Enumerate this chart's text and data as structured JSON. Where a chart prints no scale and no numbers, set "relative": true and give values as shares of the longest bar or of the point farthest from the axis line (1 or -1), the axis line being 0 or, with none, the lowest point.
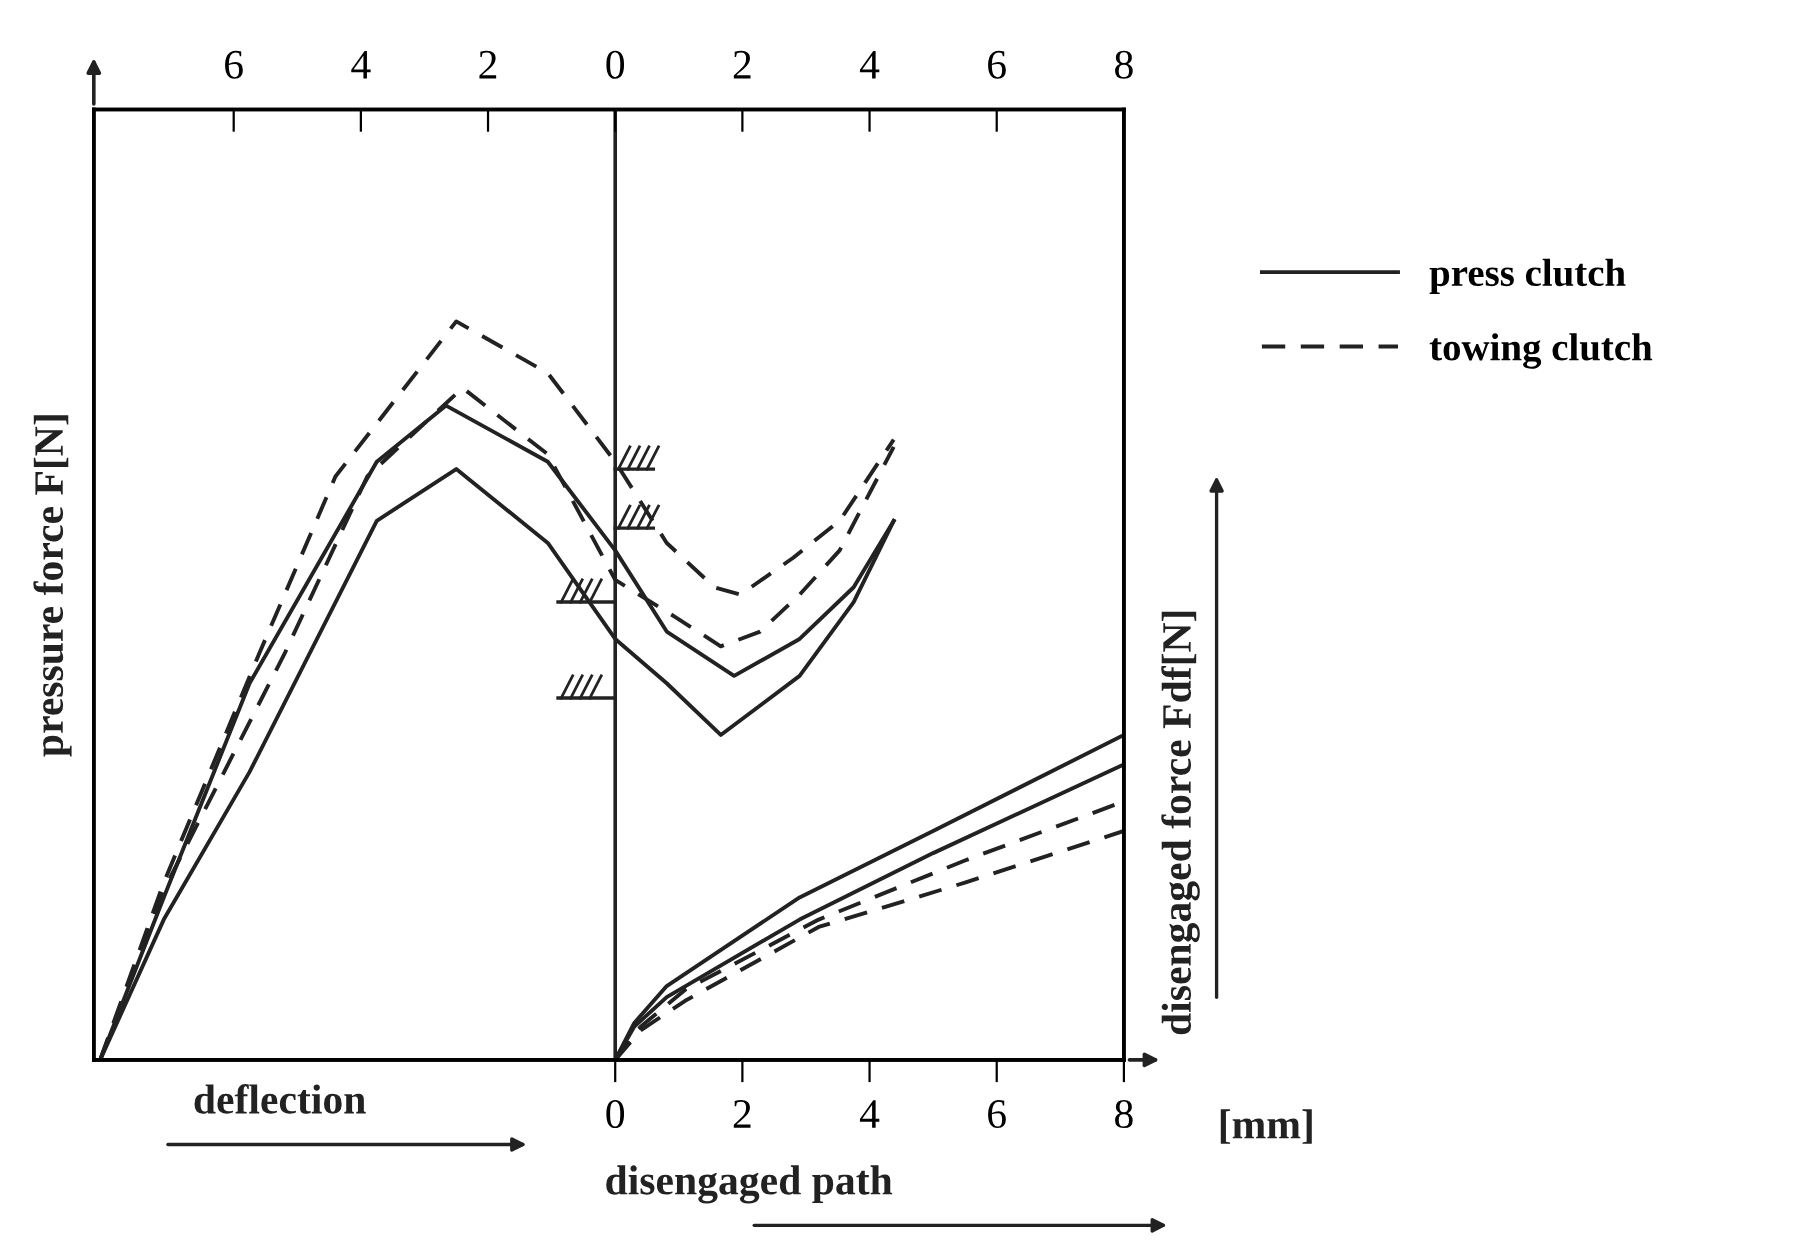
{
  "chart_data": {
    "type": "line",
    "relative": true,
    "ylabel": "pressure force F[N]",
    "y2label": "disengaged force Fdf[N]",
    "xlabel": "[mm]",
    "annotations": [
      "deflection",
      "disengaged path"
    ],
    "xlim": [
      -8.2,
      8
    ],
    "xticks": [
      0,
      2,
      4,
      6,
      8
    ],
    "x2lim": [
      -8.2,
      8
    ],
    "x2ticks": [
      {
        "value": -6,
        "label": "6"
      },
      {
        "value": -4,
        "label": "4"
      },
      {
        "value": -2,
        "label": "2"
      },
      0,
      2,
      4,
      6,
      8
    ],
    "ref_lines": [
      {
        "axis": "x",
        "value": 0,
        "color": "#222222"
      }
    ],
    "legend": "top right",
    "grid": false,
    "marker": "none",
    "series": [
      {
        "name": "press clutch",
        "color": "#222222",
        "line_style": "solid",
        "x": [
          -8.1,
          -7.1,
          -5.75,
          -3.75,
          -2.66,
          -1.06,
          0,
          0.81,
          1.87,
          2.9,
          3.75,
          4.38
        ],
        "values": [
          0,
          0.22,
          0.51,
          0.81,
          0.886,
          0.81,
          0.69,
          0.58,
          0.52,
          0.57,
          0.64,
          0.73
        ]
      },
      {
        "color": "#222222",
        "line_style": "solid",
        "x": [
          -8.1,
          -7.1,
          -5.75,
          -3.75,
          -2.5,
          -1.06,
          0,
          0.81,
          1.66,
          2.9,
          3.75,
          4.38
        ],
        "values": [
          0,
          0.19,
          0.39,
          0.73,
          0.8,
          0.7,
          0.57,
          0.51,
          0.44,
          0.52,
          0.62,
          0.73
        ]
      },
      {
        "name": "towing clutch",
        "color": "#222222",
        "line_style": "dashed",
        "x": [
          -8.1,
          -7.1,
          -5.6,
          -4.4,
          -2.5,
          -1.06,
          0,
          0.81,
          1.56,
          1.97,
          2.8,
          3.53,
          4.38
        ],
        "values": [
          0,
          0.24,
          0.55,
          0.79,
          1,
          0.93,
          0.81,
          0.7,
          0.64,
          0.63,
          0.68,
          0.73,
          0.84
        ]
      },
      {
        "color": "#222222",
        "line_style": "dashed",
        "x": [
          -8.1,
          -7.1,
          -5.2,
          -3.9,
          -2.4,
          -1.06,
          0,
          0.94,
          1.66,
          2.28,
          2.9,
          3.53,
          4.38
        ],
        "values": [
          0,
          0.23,
          0.55,
          0.79,
          0.91,
          0.82,
          0.65,
          0.6,
          0.56,
          0.58,
          0.63,
          0.69,
          0.83
        ]
      },
      {
        "color": "#222222",
        "line_style": "solid",
        "x": [
          0,
          0.3,
          0.81,
          2.9,
          5,
          8
        ],
        "values": [
          0,
          0.05,
          0.1,
          0.22,
          0.31,
          0.44
        ]
      },
      {
        "color": "#222222",
        "line_style": "solid",
        "x": [
          0,
          0.3,
          0.81,
          2.9,
          5,
          8
        ],
        "values": [
          0,
          0.045,
          0.085,
          0.19,
          0.28,
          0.4
        ]
      },
      {
        "color": "#222222",
        "line_style": "dashed",
        "x": [
          0,
          0.4,
          1.1,
          3.2,
          5.5,
          8
        ],
        "values": [
          0,
          0.045,
          0.095,
          0.19,
          0.27,
          0.35
        ]
      },
      {
        "color": "#222222",
        "line_style": "dashed",
        "x": [
          0,
          0.4,
          1.1,
          3.2,
          5.5,
          8
        ],
        "values": [
          0,
          0.04,
          0.08,
          0.18,
          0.24,
          0.31
        ]
      }
    ]
  }
}
